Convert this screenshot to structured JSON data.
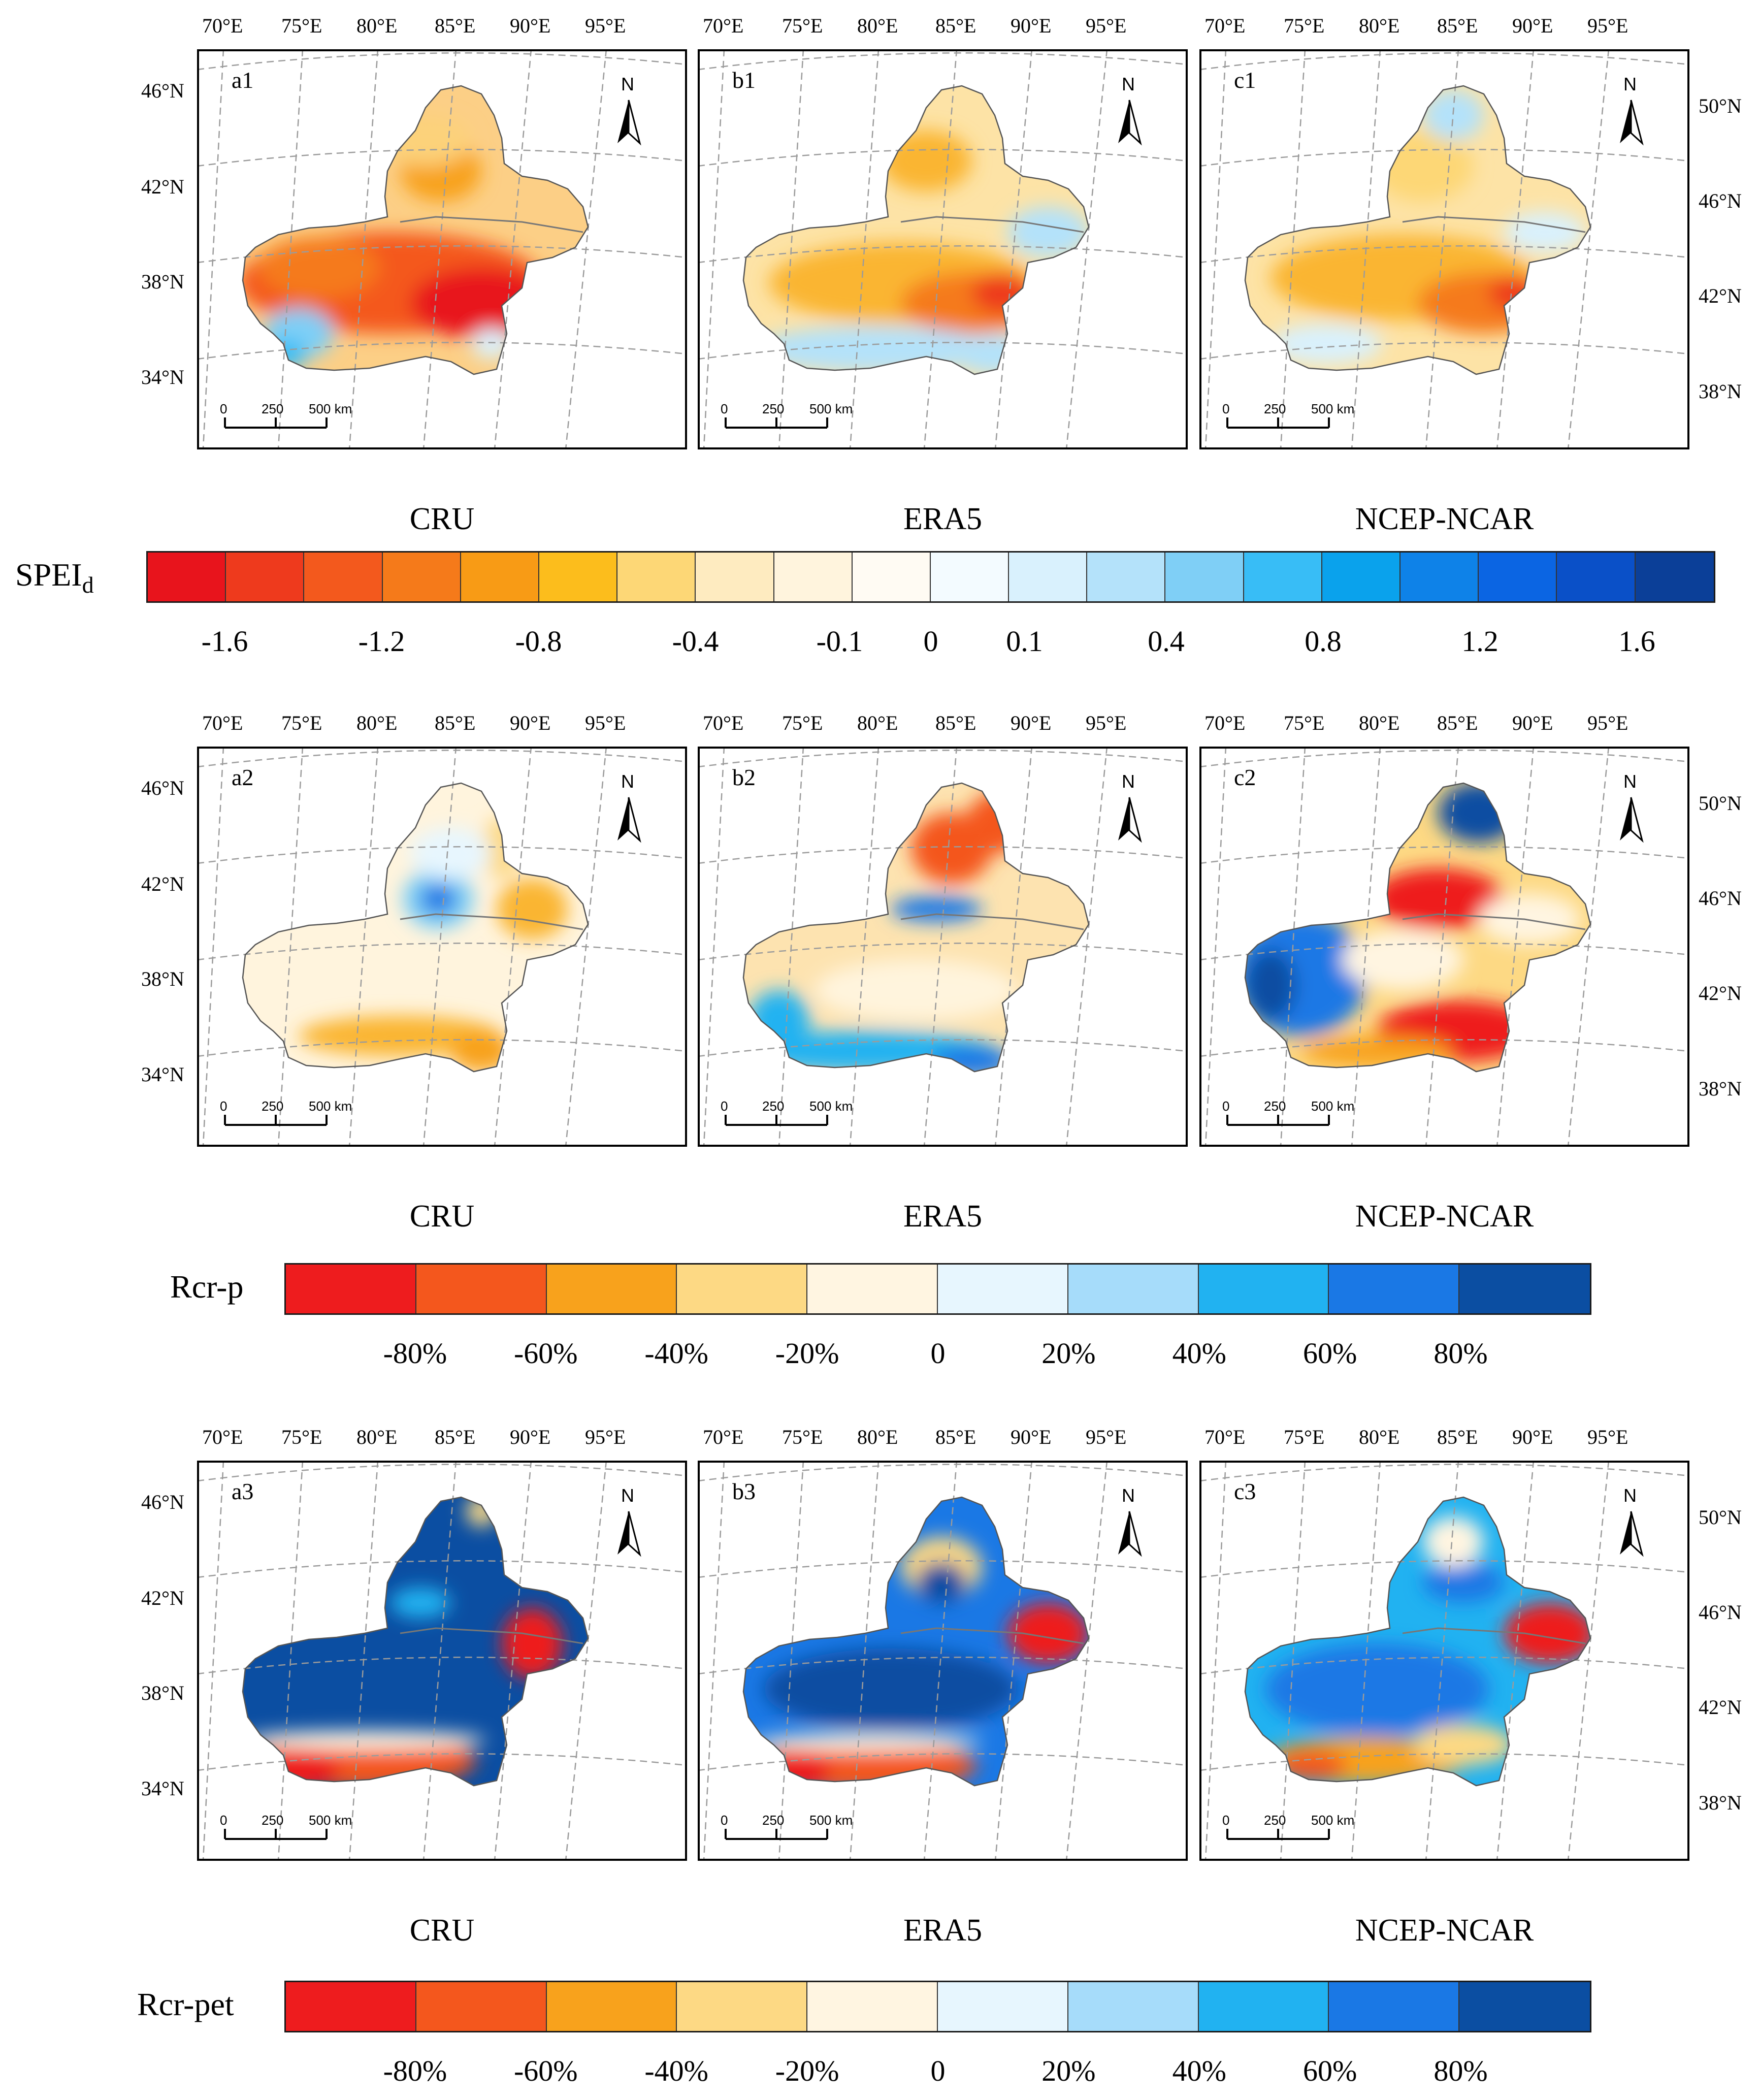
{
  "lon_ticks": [
    "70°E",
    "75°E",
    "80°E",
    "85°E",
    "90°E",
    "95°E"
  ],
  "lat_ticks_left": [
    "46°N",
    "42°N",
    "38°N",
    "34°N"
  ],
  "lat_ticks_right": [
    "50°N",
    "46°N",
    "42°N",
    "38°N"
  ],
  "north_label": "N",
  "scalebar": {
    "labels": [
      "0",
      "250",
      "500 km"
    ]
  },
  "rows": [
    {
      "panels": [
        {
          "label": "a1",
          "dataset": "CRU",
          "theme": "spei_cru"
        },
        {
          "label": "b1",
          "dataset": "ERA5",
          "theme": "spei_era"
        },
        {
          "label": "c1",
          "dataset": "NCEP-NCAR",
          "theme": "spei_ncep"
        }
      ],
      "colorbar": {
        "label_main": "SPEI",
        "label_sub": "d",
        "colors": [
          "#e8141c",
          "#ee3a1d",
          "#f3591d",
          "#f57a1a",
          "#f89b15",
          "#fcbd1c",
          "#fdd776",
          "#feebc0",
          "#fff4dd",
          "#fffbf3",
          "#f3fbff",
          "#d9f1fd",
          "#b4e2fa",
          "#7fcff6",
          "#38bdf6",
          "#0aa2ec",
          "#0e82e8",
          "#0b65e3",
          "#0a50c8",
          "#0b3f98"
        ],
        "ticks": [
          "-1.6",
          "-1.2",
          "-0.8",
          "-0.4",
          "-0.1",
          "0",
          "0.1",
          "0.4",
          "0.8",
          "1.2",
          "1.6"
        ]
      }
    },
    {
      "panels": [
        {
          "label": "a2",
          "dataset": "CRU",
          "theme": "rp_cru"
        },
        {
          "label": "b2",
          "dataset": "ERA5",
          "theme": "rp_era"
        },
        {
          "label": "c2",
          "dataset": "NCEP-NCAR",
          "theme": "rp_ncep"
        }
      ],
      "colorbar": {
        "label_main": "Rcr-p",
        "label_sub": "",
        "colors": [
          "#ee1c1e",
          "#f4571d",
          "#f8a21c",
          "#fdd984",
          "#fff5e1",
          "#e7f6fe",
          "#a6dcfa",
          "#21b2f1",
          "#1a78e5",
          "#0b4ea2"
        ],
        "ticks": [
          "-80%",
          "-60%",
          "-40%",
          "-20%",
          "0",
          "20%",
          "40%",
          "60%",
          "80%"
        ]
      }
    },
    {
      "panels": [
        {
          "label": "a3",
          "dataset": "CRU",
          "theme": "rpet_cru"
        },
        {
          "label": "b3",
          "dataset": "ERA5",
          "theme": "rpet_era"
        },
        {
          "label": "c3",
          "dataset": "NCEP-NCAR",
          "theme": "rpet_ncep"
        }
      ],
      "colorbar": {
        "label_main": "Rcr-pet",
        "label_sub": "",
        "colors": [
          "#ee1c1e",
          "#f4571d",
          "#f8a21c",
          "#fdd984",
          "#fff5e1",
          "#e7f6fe",
          "#a6dcfa",
          "#21b2f1",
          "#1a78e5",
          "#0b4ea2"
        ],
        "ticks": [
          "-80%",
          "-60%",
          "-40%",
          "-20%",
          "0",
          "20%",
          "40%",
          "60%",
          "80%"
        ]
      }
    }
  ]
}
